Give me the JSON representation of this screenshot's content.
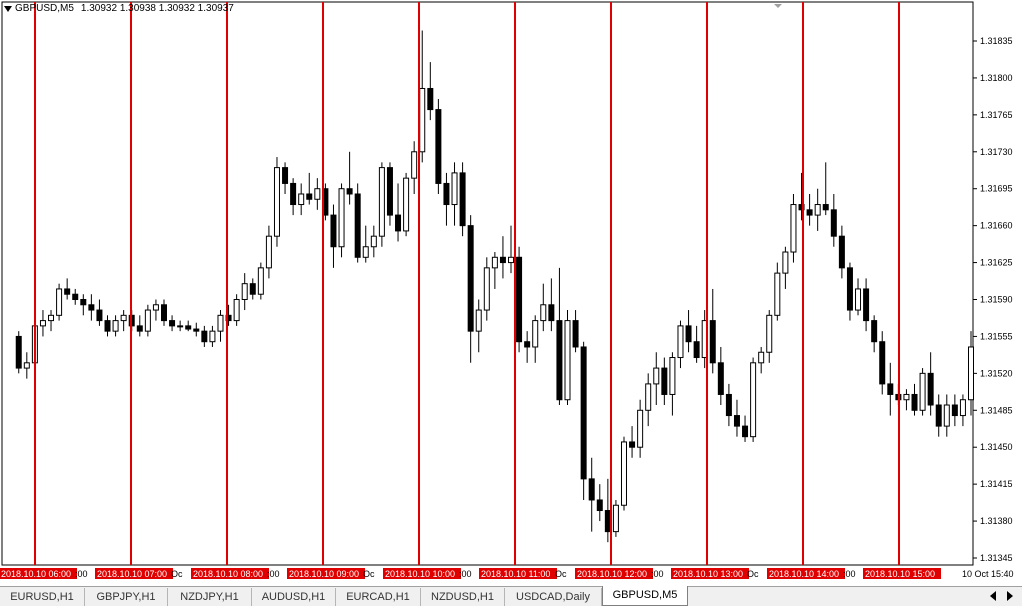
{
  "header": {
    "symbol": "GBPUSD,M5",
    "quotes": "1.30932 1.30938 1.30932 1.30937"
  },
  "price_axis": {
    "labels": [
      "1.31835",
      "1.31800",
      "1.31765",
      "1.31730",
      "1.31695",
      "1.31660",
      "1.31625",
      "1.31590",
      "1.31555",
      "1.31520",
      "1.31485",
      "1.31450",
      "1.31415",
      "1.31380",
      "1.31345"
    ]
  },
  "time_axis": {
    "labels": [
      {
        "red": "2018.10.10 06:00",
        "tail": "Oc"
      },
      {
        "red": "2018.10.10 07:00",
        "tail": ":00"
      },
      {
        "red": "2018.10.10 08:00",
        "tail": "Oc"
      },
      {
        "red": "2018.10.10 09:00",
        "tail": ":00"
      },
      {
        "red": "2018.10.10 10:00",
        "tail": "Oc"
      },
      {
        "red": "2018.10.10 11:00",
        "tail": ":00"
      },
      {
        "red": "2018.10.10 12:00",
        "tail": "Oc"
      },
      {
        "red": "2018.10.10 13:00",
        "tail": ":00"
      },
      {
        "red": "2018.10.10 14:00",
        "tail": "Oc"
      },
      {
        "red": "2018.10.10 15:00",
        "tail": ":00"
      }
    ],
    "last_label": "10 Oct 15:40",
    "marker_color": "#e00000"
  },
  "chart_data": {
    "type": "candlestick",
    "timeframe": "M5",
    "vertical_lines": [
      "2018.10.10 06:00",
      "2018.10.10 07:00",
      "2018.10.10 08:00",
      "2018.10.10 09:00",
      "2018.10.10 10:00",
      "2018.10.10 11:00",
      "2018.10.10 12:00",
      "2018.10.10 13:00",
      "2018.10.10 14:00",
      "2018.10.10 15:00"
    ],
    "candles_hint": "OHLC per 5-minute bar, ~1.3136 to ~1.3186",
    "ohlc": [
      [
        1.31555,
        1.3156,
        1.3152,
        1.31525
      ],
      [
        1.31525,
        1.3154,
        1.31515,
        1.3153
      ],
      [
        1.3153,
        1.3157,
        1.31525,
        1.31565
      ],
      [
        1.31565,
        1.3158,
        1.31555,
        1.3157
      ],
      [
        1.3157,
        1.3158,
        1.3156,
        1.31575
      ],
      [
        1.31575,
        1.31605,
        1.3157,
        1.316
      ],
      [
        1.316,
        1.3161,
        1.3159,
        1.31595
      ],
      [
        1.31595,
        1.316,
        1.31585,
        1.3159
      ],
      [
        1.3159,
        1.31595,
        1.31575,
        1.31585
      ],
      [
        1.31585,
        1.31595,
        1.3157,
        1.3158
      ],
      [
        1.3158,
        1.3159,
        1.31565,
        1.3157
      ],
      [
        1.3157,
        1.31575,
        1.31555,
        1.3156
      ],
      [
        1.3156,
        1.31575,
        1.31555,
        1.3157
      ],
      [
        1.3157,
        1.3158,
        1.3156,
        1.31575
      ],
      [
        1.31575,
        1.3158,
        1.3156,
        1.31565
      ],
      [
        1.31565,
        1.31575,
        1.31555,
        1.3156
      ],
      [
        1.3156,
        1.31585,
        1.31555,
        1.3158
      ],
      [
        1.3158,
        1.3159,
        1.3157,
        1.31585
      ],
      [
        1.31585,
        1.3159,
        1.31565,
        1.3157
      ],
      [
        1.3157,
        1.31575,
        1.3156,
        1.31565
      ],
      [
        1.31565,
        1.3157,
        1.3156,
        1.31565
      ],
      [
        1.31565,
        1.3157,
        1.3156,
        1.31562
      ],
      [
        1.31562,
        1.31568,
        1.31555,
        1.3156
      ],
      [
        1.3156,
        1.31565,
        1.31545,
        1.3155
      ],
      [
        1.3155,
        1.31565,
        1.31545,
        1.3156
      ],
      [
        1.3156,
        1.3158,
        1.3155,
        1.31575
      ],
      [
        1.31575,
        1.31585,
        1.31565,
        1.3157
      ],
      [
        1.3157,
        1.31595,
        1.31565,
        1.3159
      ],
      [
        1.3159,
        1.31615,
        1.3158,
        1.31605
      ],
      [
        1.31605,
        1.3161,
        1.3159,
        1.31595
      ],
      [
        1.31595,
        1.31625,
        1.3159,
        1.3162
      ],
      [
        1.3162,
        1.3166,
        1.3161,
        1.3165
      ],
      [
        1.3165,
        1.31725,
        1.3164,
        1.31715
      ],
      [
        1.31715,
        1.3172,
        1.3169,
        1.317
      ],
      [
        1.317,
        1.31705,
        1.3167,
        1.3168
      ],
      [
        1.3168,
        1.317,
        1.3167,
        1.3169
      ],
      [
        1.3169,
        1.3171,
        1.3168,
        1.31685
      ],
      [
        1.31685,
        1.31705,
        1.31675,
        1.31695
      ],
      [
        1.31695,
        1.317,
        1.31665,
        1.3167
      ],
      [
        1.3167,
        1.3168,
        1.3162,
        1.3164
      ],
      [
        1.3164,
        1.317,
        1.3163,
        1.31695
      ],
      [
        1.31695,
        1.3173,
        1.3168,
        1.3169
      ],
      [
        1.3169,
        1.317,
        1.31625,
        1.3163
      ],
      [
        1.3163,
        1.3166,
        1.31625,
        1.3164
      ],
      [
        1.3164,
        1.3166,
        1.3163,
        1.3165
      ],
      [
        1.3165,
        1.3172,
        1.3164,
        1.31715
      ],
      [
        1.31715,
        1.3172,
        1.3166,
        1.3167
      ],
      [
        1.3167,
        1.317,
        1.31645,
        1.31655
      ],
      [
        1.31655,
        1.3171,
        1.3165,
        1.31705
      ],
      [
        1.31705,
        1.3174,
        1.3169,
        1.3173
      ],
      [
        1.3173,
        1.31845,
        1.3172,
        1.3179
      ],
      [
        1.3179,
        1.31815,
        1.3176,
        1.3177
      ],
      [
        1.3177,
        1.3178,
        1.3169,
        1.317
      ],
      [
        1.317,
        1.3171,
        1.3166,
        1.3168
      ],
      [
        1.3168,
        1.3172,
        1.3166,
        1.3171
      ],
      [
        1.3171,
        1.3172,
        1.3165,
        1.3166
      ],
      [
        1.3166,
        1.3167,
        1.3153,
        1.3156
      ],
      [
        1.3156,
        1.3159,
        1.3154,
        1.3158
      ],
      [
        1.3158,
        1.3163,
        1.3157,
        1.3162
      ],
      [
        1.3162,
        1.31635,
        1.316,
        1.3163
      ],
      [
        1.3163,
        1.3165,
        1.3161,
        1.31625
      ],
      [
        1.31625,
        1.3166,
        1.31615,
        1.3163
      ],
      [
        1.3163,
        1.3164,
        1.3154,
        1.3155
      ],
      [
        1.3155,
        1.3156,
        1.3153,
        1.31545
      ],
      [
        1.31545,
        1.31575,
        1.3153,
        1.3157
      ],
      [
        1.3157,
        1.31605,
        1.3156,
        1.31585
      ],
      [
        1.31585,
        1.3161,
        1.3156,
        1.3157
      ],
      [
        1.3157,
        1.3162,
        1.3149,
        1.31495
      ],
      [
        1.31495,
        1.3158,
        1.3149,
        1.3157
      ],
      [
        1.3157,
        1.3158,
        1.3154,
        1.31545
      ],
      [
        1.31545,
        1.3155,
        1.314,
        1.3142
      ],
      [
        1.3142,
        1.3144,
        1.3137,
        1.314
      ],
      [
        1.314,
        1.31415,
        1.3138,
        1.3139
      ],
      [
        1.3139,
        1.3142,
        1.3136,
        1.3137
      ],
      [
        1.3137,
        1.314,
        1.31365,
        1.31395
      ],
      [
        1.31395,
        1.3146,
        1.3139,
        1.31455
      ],
      [
        1.31455,
        1.3147,
        1.3144,
        1.3145
      ],
      [
        1.3145,
        1.31495,
        1.3144,
        1.31485
      ],
      [
        1.31485,
        1.3152,
        1.3147,
        1.3151
      ],
      [
        1.3151,
        1.3154,
        1.3149,
        1.31525
      ],
      [
        1.31525,
        1.31535,
        1.3149,
        1.315
      ],
      [
        1.315,
        1.3154,
        1.3148,
        1.31535
      ],
      [
        1.31535,
        1.3157,
        1.31525,
        1.31565
      ],
      [
        1.31565,
        1.3158,
        1.3154,
        1.3155
      ],
      [
        1.3155,
        1.31565,
        1.3153,
        1.31535
      ],
      [
        1.31535,
        1.3158,
        1.31525,
        1.3157
      ],
      [
        1.3157,
        1.316,
        1.3152,
        1.3153
      ],
      [
        1.3153,
        1.31545,
        1.3149,
        1.315
      ],
      [
        1.315,
        1.3151,
        1.3147,
        1.3148
      ],
      [
        1.3148,
        1.31495,
        1.3146,
        1.3147
      ],
      [
        1.3147,
        1.3148,
        1.31455,
        1.3146
      ],
      [
        1.3146,
        1.31535,
        1.31455,
        1.3153
      ],
      [
        1.3153,
        1.31545,
        1.3152,
        1.3154
      ],
      [
        1.3154,
        1.3158,
        1.3153,
        1.31575
      ],
      [
        1.31575,
        1.31625,
        1.3157,
        1.31615
      ],
      [
        1.31615,
        1.3164,
        1.316,
        1.31635
      ],
      [
        1.31635,
        1.3169,
        1.31625,
        1.3168
      ],
      [
        1.3168,
        1.3171,
        1.31665,
        1.31675
      ],
      [
        1.31675,
        1.3169,
        1.3166,
        1.3167
      ],
      [
        1.3167,
        1.31695,
        1.31655,
        1.3168
      ],
      [
        1.3168,
        1.3172,
        1.3167,
        1.31675
      ],
      [
        1.31675,
        1.3169,
        1.3164,
        1.3165
      ],
      [
        1.3165,
        1.3166,
        1.3161,
        1.3162
      ],
      [
        1.3162,
        1.31625,
        1.3157,
        1.3158
      ],
      [
        1.3158,
        1.3161,
        1.31575,
        1.316
      ],
      [
        1.316,
        1.3161,
        1.3156,
        1.3157
      ],
      [
        1.3157,
        1.31575,
        1.3154,
        1.3155
      ],
      [
        1.3155,
        1.3156,
        1.315,
        1.3151
      ],
      [
        1.3151,
        1.3153,
        1.3148,
        1.315
      ],
      [
        1.315,
        1.3151,
        1.3149,
        1.31495
      ],
      [
        1.31495,
        1.31505,
        1.31485,
        1.315
      ],
      [
        1.315,
        1.3151,
        1.3148,
        1.31485
      ],
      [
        1.31485,
        1.31525,
        1.3148,
        1.3152
      ],
      [
        1.3152,
        1.3154,
        1.3148,
        1.3149
      ],
      [
        1.3149,
        1.315,
        1.3146,
        1.3147
      ],
      [
        1.3147,
        1.315,
        1.3146,
        1.3149
      ],
      [
        1.3149,
        1.315,
        1.3147,
        1.3148
      ],
      [
        1.3148,
        1.315,
        1.3147,
        1.31495
      ],
      [
        1.31495,
        1.3156,
        1.3148,
        1.31545
      ]
    ]
  },
  "tabs": [
    {
      "label": "EURUSD,H1",
      "active": false
    },
    {
      "label": "GBPJPY,H1",
      "active": false
    },
    {
      "label": "NZDJPY,H1",
      "active": false
    },
    {
      "label": "AUDUSD,H1",
      "active": false
    },
    {
      "label": "EURCAD,H1",
      "active": false
    },
    {
      "label": "NZDUSD,H1",
      "active": false
    },
    {
      "label": "USDCAD,Daily",
      "active": false
    },
    {
      "label": "GBPUSD,M5",
      "active": true
    }
  ]
}
